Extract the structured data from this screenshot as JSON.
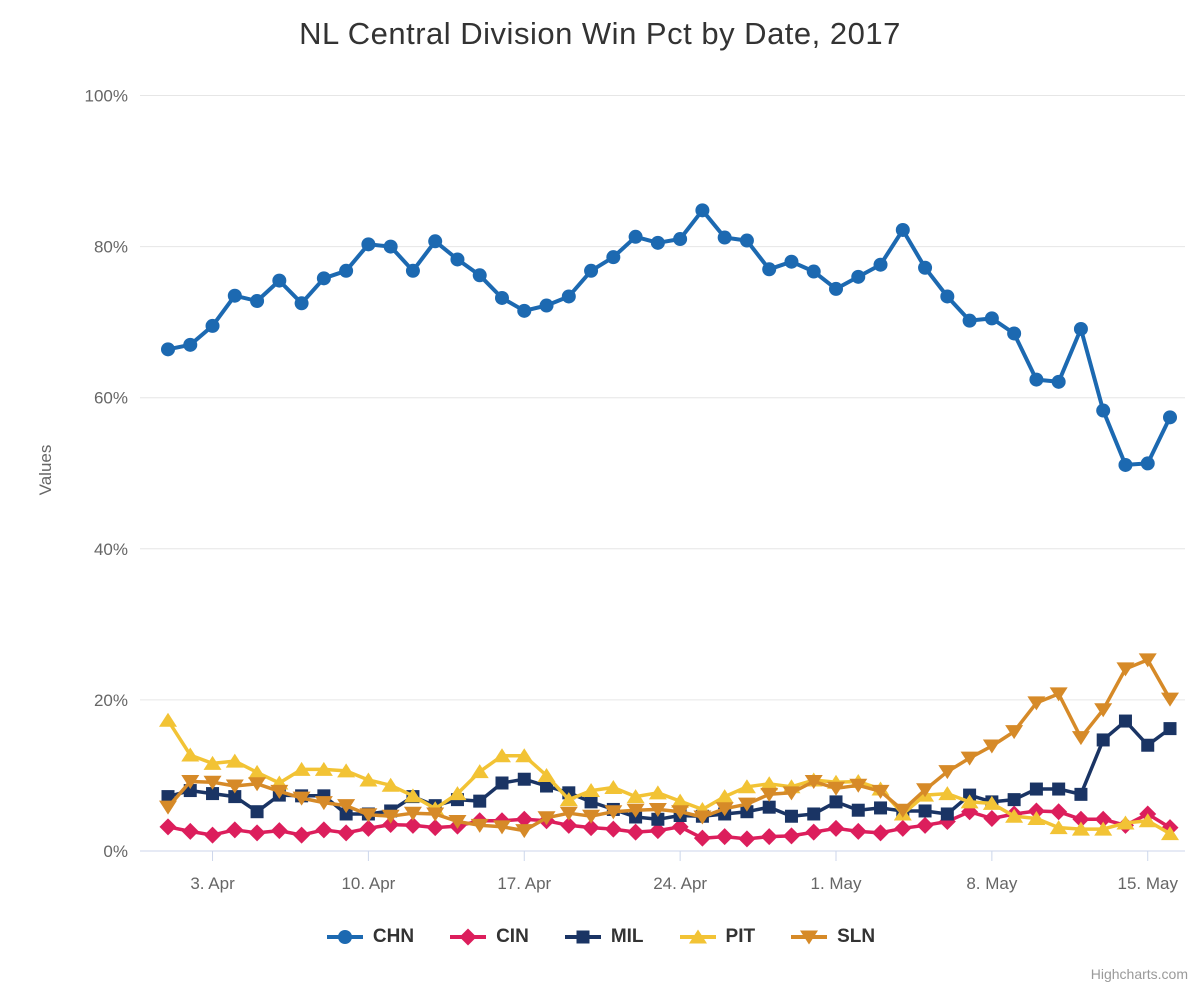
{
  "credit": "Highcharts.com",
  "chart_data": {
    "type": "line",
    "title": "NL Central Division Win Pct by Date, 2017",
    "xlabel": "",
    "ylabel": "Values",
    "ylim": [
      0,
      100
    ],
    "yticks": [
      0,
      20,
      40,
      60,
      80,
      100
    ],
    "ytick_suffix": "%",
    "grid": true,
    "legend_position": "bottom",
    "n_points": 46,
    "dates": [
      "1. Apr",
      "2. Apr",
      "3. Apr",
      "4. Apr",
      "5. Apr",
      "6. Apr",
      "7. Apr",
      "8. Apr",
      "9. Apr",
      "10. Apr",
      "11. Apr",
      "12. Apr",
      "13. Apr",
      "14. Apr",
      "15. Apr",
      "16. Apr",
      "17. Apr",
      "18. Apr",
      "19. Apr",
      "20. Apr",
      "21. Apr",
      "22. Apr",
      "23. Apr",
      "24. Apr",
      "25. Apr",
      "26. Apr",
      "27. Apr",
      "28. Apr",
      "29. Apr",
      "30. Apr",
      "1. May",
      "2. May",
      "3. May",
      "4. May",
      "5. May",
      "6. May",
      "7. May",
      "8. May",
      "9. May",
      "10. May",
      "11. May",
      "12. May",
      "13. May",
      "14. May",
      "15. May",
      "16. May"
    ],
    "x_tick_indices": [
      2,
      9,
      16,
      23,
      30,
      37,
      44
    ],
    "x_tick_labels": [
      "3. Apr",
      "10. Apr",
      "17. Apr",
      "24. Apr",
      "1. May",
      "8. May",
      "15. May"
    ],
    "colors": {
      "grid": "#E6E6E6",
      "axis_line": "#CCD6EB",
      "tick_label": "#666666",
      "title": "#333333",
      "legend_text": "#333333"
    },
    "series": [
      {
        "name": "CHN",
        "color": "#1C69B1",
        "marker": "circle",
        "values": [
          66.4,
          67.0,
          69.5,
          73.5,
          72.8,
          75.5,
          72.5,
          75.8,
          76.8,
          80.3,
          80.0,
          76.8,
          80.7,
          78.3,
          76.2,
          73.2,
          71.5,
          72.2,
          73.4,
          76.8,
          78.6,
          81.3,
          80.5,
          81.0,
          84.8,
          81.2,
          80.8,
          77.0,
          78.0,
          76.7,
          74.4,
          76.0,
          77.6,
          82.2,
          77.2,
          73.4,
          70.2,
          70.5,
          68.5,
          62.4,
          62.1,
          69.1,
          58.3,
          51.1,
          51.3,
          57.4
        ]
      },
      {
        "name": "CIN",
        "color": "#DC1E5C",
        "marker": "diamond",
        "values": [
          3.2,
          2.6,
          2.1,
          2.8,
          2.4,
          2.7,
          2.1,
          2.8,
          2.4,
          3.0,
          3.5,
          3.4,
          3.1,
          3.3,
          4.0,
          4.0,
          4.2,
          4.0,
          3.4,
          3.1,
          2.9,
          2.5,
          2.7,
          3.2,
          1.7,
          1.9,
          1.6,
          1.9,
          2.0,
          2.5,
          3.0,
          2.6,
          2.4,
          3.0,
          3.4,
          3.9,
          5.2,
          4.3,
          4.9,
          5.3,
          5.2,
          4.2,
          4.2,
          3.4,
          4.9,
          3.1
        ]
      },
      {
        "name": "MIL",
        "color": "#1A3464",
        "marker": "square",
        "values": [
          7.2,
          8.0,
          7.6,
          7.2,
          5.2,
          7.4,
          7.3,
          7.3,
          4.9,
          4.9,
          5.3,
          7.2,
          6.0,
          6.8,
          6.6,
          9.0,
          9.5,
          8.6,
          7.7,
          6.5,
          5.5,
          4.5,
          4.2,
          4.7,
          4.6,
          4.9,
          5.2,
          5.8,
          4.6,
          4.9,
          6.5,
          5.4,
          5.7,
          5.3,
          5.3,
          4.9,
          7.4,
          6.5,
          6.8,
          8.2,
          8.2,
          7.5,
          14.7,
          17.2,
          14.0,
          16.2
        ]
      },
      {
        "name": "PIT",
        "color": "#F2C335",
        "marker": "triangle-up",
        "values": [
          17.3,
          12.7,
          11.6,
          11.9,
          10.4,
          9.0,
          10.8,
          10.8,
          10.6,
          9.4,
          8.7,
          7.3,
          5.6,
          7.6,
          10.5,
          12.6,
          12.6,
          10.0,
          6.8,
          8.0,
          8.4,
          7.2,
          7.7,
          6.6,
          5.5,
          7.2,
          8.5,
          8.9,
          8.5,
          9.4,
          9.1,
          9.2,
          8.2,
          4.9,
          7.4,
          7.6,
          6.5,
          6.3,
          4.6,
          4.3,
          3.1,
          2.9,
          2.9,
          3.7,
          4.0,
          2.3
        ]
      },
      {
        "name": "SLN",
        "color": "#D68A28",
        "marker": "triangle-down",
        "values": [
          5.8,
          9.2,
          9.1,
          8.6,
          8.9,
          7.9,
          7.0,
          6.4,
          6.0,
          4.8,
          4.6,
          5.0,
          4.9,
          3.9,
          3.4,
          3.2,
          2.7,
          4.4,
          5.0,
          4.6,
          5.2,
          5.4,
          5.5,
          5.2,
          4.5,
          5.6,
          6.2,
          7.5,
          7.7,
          9.2,
          8.3,
          8.7,
          7.9,
          5.4,
          8.1,
          10.5,
          12.3,
          13.9,
          15.8,
          19.6,
          20.8,
          15.0,
          18.7,
          24.1,
          25.3,
          20.1
        ]
      }
    ]
  }
}
